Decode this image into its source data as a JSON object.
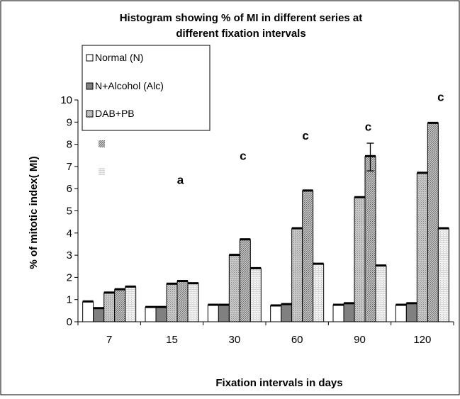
{
  "chart_data": {
    "type": "bar",
    "title_lines": [
      "Histogram showing % of MI in different series at",
      "different fixation intervals"
    ],
    "xlabel": "Fixation intervals in days",
    "ylabel": "% of mitotic index( MI)",
    "ylim": [
      0,
      10
    ],
    "y_ticks": [
      "0",
      "1",
      "2",
      "3",
      "4",
      "5",
      "6",
      "7",
      "8",
      "9",
      "10"
    ],
    "categories": [
      "7",
      "15",
      "30",
      "60",
      "90",
      "120"
    ],
    "legend": {
      "placement": "top-left",
      "entries": [
        "Normal (N)",
        "N+Alcohol (Alc)",
        "DAB+PB"
      ]
    },
    "series": [
      {
        "name": "Normal (N)",
        "color": "#ffffff",
        "values": [
          0.9,
          0.65,
          0.75,
          0.72,
          0.75,
          0.75
        ]
      },
      {
        "name": "N+Alcohol (Alc)",
        "color": "#808080",
        "values": [
          0.6,
          0.65,
          0.75,
          0.78,
          0.82,
          0.82
        ]
      },
      {
        "values": [
          1.3,
          1.7,
          3.0,
          4.2,
          5.6,
          6.7
        ]
      },
      {
        "values": [
          1.45,
          1.82,
          3.7,
          5.9,
          7.45,
          8.95
        ]
      },
      {
        "values": [
          1.57,
          1.72,
          2.4,
          2.6,
          2.52,
          4.2
        ]
      }
    ],
    "error_bar": {
      "category": "90",
      "series_index": 3,
      "value": 7.45,
      "upper": 8.05,
      "lower": 6.8
    },
    "annotations": [
      {
        "text": "a",
        "category": "15",
        "y": 6.4
      },
      {
        "text": "c",
        "category": "30",
        "y": 7.5
      },
      {
        "text": "c",
        "category": "60",
        "y": 8.4
      },
      {
        "text": "c",
        "category": "90",
        "y": 8.8
      },
      {
        "text": "c",
        "category": "120",
        "y": 10.15
      }
    ],
    "grid": false
  }
}
